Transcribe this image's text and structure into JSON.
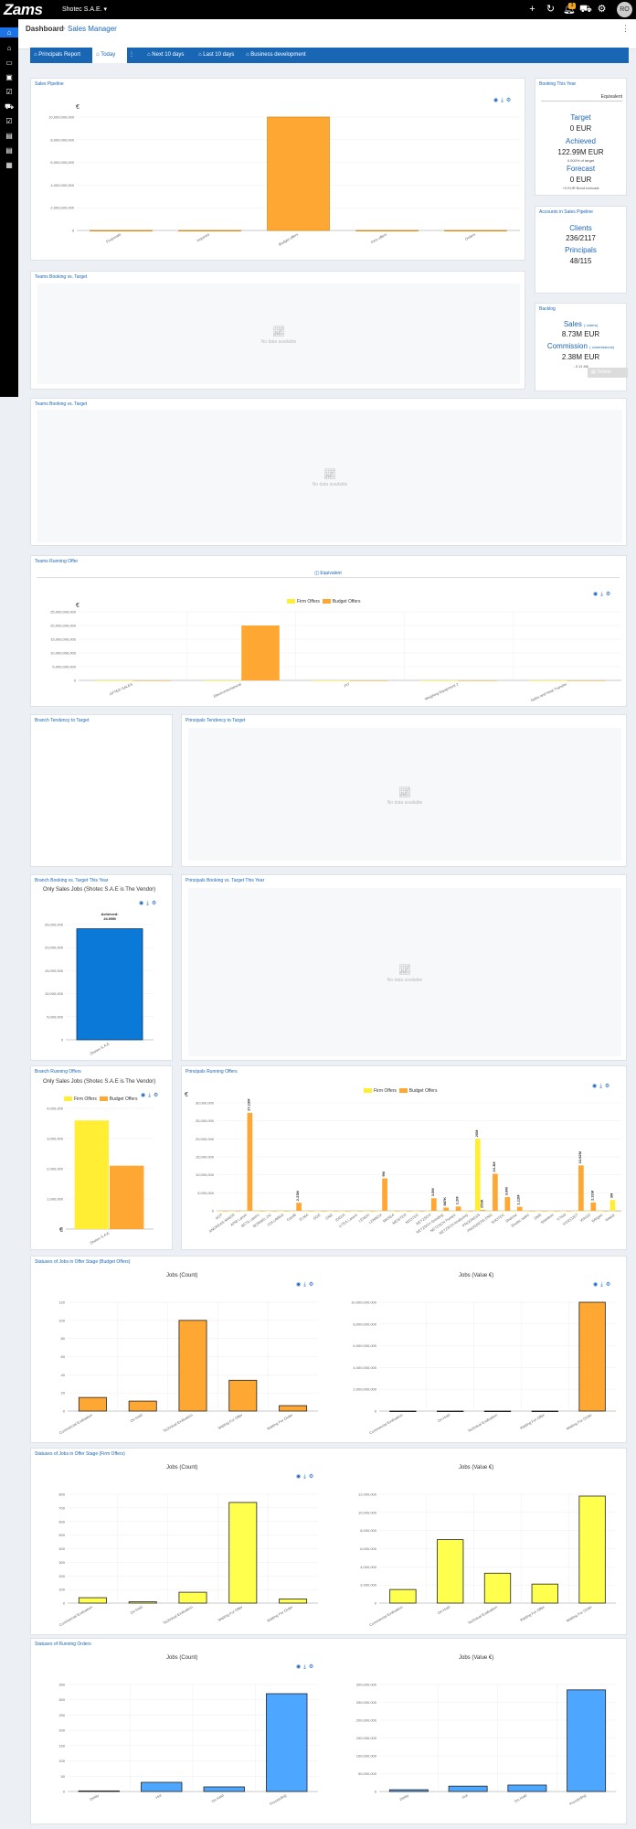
{
  "app": {
    "logo": "Zams",
    "company": "Shotec S.A.E.",
    "notification_count": "3",
    "avatar_initials": "RO"
  },
  "topbar_icons": [
    "plus-icon",
    "history-icon",
    "bell-icon",
    "cart-icon",
    "grid-icon",
    "settings-icon"
  ],
  "breadcrumb": {
    "home": "Dashboard",
    "separator": ">",
    "page": "Sales Manager"
  },
  "tabs": [
    {
      "label": "Principals Report",
      "icon": "dashboard-icon",
      "active": false
    },
    {
      "label": "Today",
      "icon": "dashboard-icon",
      "active": true
    },
    {
      "label": "Next 10 days",
      "icon": "dashboard-icon",
      "active": false
    },
    {
      "label": "Last 10 days",
      "icon": "dashboard-icon",
      "active": false
    },
    {
      "label": "Business development",
      "icon": "dashboard-icon",
      "active": false
    }
  ],
  "sales_pipeline": {
    "title": "Sales Pipeline",
    "currency": "€",
    "chart_data": {
      "type": "bar",
      "categories": [
        "Proposals",
        "Inquiries",
        "Budget offers",
        "Firm offers",
        "Orders"
      ],
      "values": [
        0,
        0,
        10000000000,
        0,
        0
      ],
      "ylim": [
        0,
        10000000000
      ],
      "yticks": [
        "0",
        "2,000,000,000",
        "4,000,000,000",
        "6,000,000,000",
        "8,000,000,000",
        "10,000,000,000"
      ]
    }
  },
  "booking_this_year": {
    "title": "Booking This Year",
    "select_value": "Equivalent",
    "target_label": "Target",
    "target_value": "0 EUR",
    "achieved_label": "Achieved",
    "achieved_value": "122.99M EUR",
    "achieved_sub": "0.000% of target",
    "forecast_label": "Forecast",
    "forecast_value": "0 EUR",
    "forecast_sub": "+0 EUR Bond forecast"
  },
  "accounts_pipeline": {
    "title": "Accounts in Sales Pipeline",
    "clients_label": "Clients",
    "clients_value": "236/2117",
    "principals_label": "Principals",
    "principals_value": "48/115"
  },
  "backlog": {
    "title": "Backlog",
    "sales_label": "Sales",
    "sales_link": "( orders)",
    "sales_value": "8.73M EUR",
    "commission_label": "Commission",
    "commission_link": "( commissions)",
    "commission_value": "2.38M EUR",
    "commission_sub": "- 0.11 Mil",
    "tickets_label": "Tickets"
  },
  "teams_booking_small": {
    "title": "Teams Booking vs. Target",
    "no_data": "No data available"
  },
  "teams_booking_large": {
    "title": "Teams Booking vs. Target",
    "no_data": "No data available"
  },
  "teams_running_offer": {
    "title": "Teams Running Offer",
    "equivalent_label": "Equivalent",
    "currency": "€",
    "legend": [
      "Firm Offers",
      "Budget Offers"
    ],
    "chart_data": {
      "type": "bar",
      "categories": [
        "AFTER SALES",
        "Electromechanical",
        "PIT",
        "Weighing Equipment 2",
        "Sales and Heat Transfer"
      ],
      "series": [
        {
          "name": "Firm Offers",
          "values": [
            0,
            0,
            0,
            0,
            0
          ]
        },
        {
          "name": "Budget Offers",
          "values": [
            0,
            20000000000,
            0,
            0,
            0
          ]
        }
      ],
      "ylim": [
        0,
        25000000000
      ],
      "yticks": [
        "0",
        "5,000,000,000",
        "10,000,000,000",
        "15,000,000,000",
        "20,000,000,000",
        "25,000,000,000"
      ]
    }
  },
  "branch_tendency": {
    "title": "Branch Tendency to Target"
  },
  "principals_tendency": {
    "title": "Principals Tendency to Target",
    "no_data": "No data available"
  },
  "branch_booking": {
    "title": "Branch Booking vs. Target This Year",
    "subtitle": "Only Sales Jobs (Shotec S.A.E is The Vendor)",
    "label_achieved": "Achieved:",
    "label_value": "24.09M",
    "chart_data": {
      "type": "bar",
      "categories": [
        "Shotec S.A.E"
      ],
      "values": [
        24090000
      ],
      "ylim": [
        0,
        25000000
      ],
      "yticks": [
        "0",
        "5,000,000",
        "10,000,000",
        "15,000,000",
        "20,000,000",
        "25,000,000"
      ]
    }
  },
  "principals_booking": {
    "title": "Principals Booking vs. Target This Year",
    "no_data": "No data available"
  },
  "branch_running": {
    "title": "Branch Running Offers",
    "subtitle": "Only Sales Jobs (Shotec S.A.E is The Vendor)",
    "legend": [
      "Firm Offers",
      "Budget Offers"
    ],
    "currency": "€",
    "chart_data": {
      "type": "bar",
      "categories": [
        "Shotec S.A.E"
      ],
      "series": [
        {
          "name": "Firm Offers",
          "values": [
            3600000
          ]
        },
        {
          "name": "Budget Offers",
          "values": [
            2100000
          ]
        }
      ],
      "ylim": [
        0,
        4000000
      ],
      "yticks": [
        "0",
        "1,000,000",
        "2,000,000",
        "3,000,000",
        "4,000,000"
      ]
    }
  },
  "principals_running": {
    "title": "Principals Running Offers",
    "legend": [
      "Firm Offers",
      "Budget Offers"
    ],
    "currency": "€",
    "chart_data": {
      "type": "bar",
      "categories": [
        "ACP",
        "ANDREAS MAIER",
        "APM Lamm",
        "BETA Lasers",
        "BORMEL DC",
        "COLUMBIA",
        "Carelli",
        "ELMA",
        "GGE",
        "GNE",
        "IDEEA",
        "ILTEA Lasers",
        "LENOX",
        "LENNOX",
        "MASSA",
        "MEISTER",
        "NEOTEC",
        "NETZSCH",
        "NETZSCH Grinding",
        "NETZSCH Pumps",
        "NETZSCH Analyzing",
        "PROGRESS",
        "PROGRESS ENG",
        "SHOTEC",
        "Sharma",
        "Shotec sales",
        "SMS",
        "Stainless",
        "TITAN",
        "VIDEOJET",
        "WAGO",
        "Wirtgen",
        "Weber"
      ],
      "series": [
        {
          "name": "Firm Offers",
          "values": [
            0,
            0,
            0,
            0,
            0,
            0,
            0,
            0,
            0,
            0,
            0,
            0,
            0,
            0,
            0,
            0,
            0,
            0,
            0,
            0,
            0,
            20000000,
            0,
            0,
            0,
            0,
            0,
            0,
            0,
            0,
            0,
            0,
            3000000
          ]
        },
        {
          "name": "Budget Offers",
          "values": [
            0,
            0,
            27230000,
            0,
            0,
            0,
            2230000,
            0,
            0,
            0,
            0,
            0,
            0,
            9000000,
            0,
            0,
            0,
            3500000,
            887000,
            1200000,
            0,
            253170,
            10300000,
            3800000,
            1120000,
            0,
            0,
            0,
            0,
            12620000,
            2310000,
            0,
            0
          ]
        }
      ],
      "ylim": [
        0,
        30000000
      ],
      "yticks": [
        "0",
        "5,000,000",
        "10,000,000",
        "15,000,000",
        "20,000,000",
        "25,000,000",
        "30,000,000"
      ]
    }
  },
  "statuses_budget": {
    "title": "Statuses of Jobs in Offer Stage (Budget Offers)",
    "count_title": "Jobs (Count)",
    "value_title": "Jobs (Value €)",
    "count_chart": {
      "type": "bar",
      "categories": [
        "Commercial Evaluation",
        "On Hold",
        "Technical Evaluation",
        "Waiting For Offer",
        "Waiting For Order"
      ],
      "values": [
        15,
        11,
        100,
        34,
        6
      ],
      "ylim": [
        0,
        120
      ],
      "yticks": [
        "0",
        "20",
        "40",
        "60",
        "80",
        "100",
        "120"
      ]
    },
    "value_chart": {
      "type": "bar",
      "categories": [
        "Commercial Evaluation",
        "On Hold",
        "Technical Evaluation",
        "Waiting For Offer",
        "Waiting For Order"
      ],
      "values": [
        0,
        0,
        0,
        0,
        10000000000
      ],
      "ylim": [
        0,
        10000000000
      ],
      "yticks": [
        "0",
        "2,000,000,000",
        "4,000,000,000",
        "6,000,000,000",
        "8,000,000,000",
        "10,000,000,000"
      ]
    }
  },
  "statuses_firm": {
    "title": "Statuses of Jobs in Offer Stage (Firm Offers)",
    "count_title": "Jobs (Count)",
    "value_title": "Jobs (Value €)",
    "count_chart": {
      "type": "bar",
      "categories": [
        "Commercial Evaluation",
        "On Hold",
        "Technical Evaluation",
        "Waiting For Offer",
        "Waiting For Order"
      ],
      "values": [
        40,
        10,
        80,
        740,
        30
      ],
      "ylim": [
        0,
        800
      ],
      "yticks": [
        "0",
        "100",
        "200",
        "300",
        "400",
        "500",
        "600",
        "700",
        "800"
      ]
    },
    "value_chart": {
      "type": "bar",
      "categories": [
        "Commercial Evaluation",
        "On Hold",
        "Technical Evaluation",
        "Waiting For Offer",
        "Waiting For Order"
      ],
      "values": [
        1500000,
        7000000,
        3300000,
        2100000,
        11800000
      ],
      "ylim": [
        0,
        12000000
      ],
      "yticks": [
        "0",
        "2,000,000",
        "4,000,000",
        "6,000,000",
        "8,000,000",
        "10,000,000",
        "12,000,000"
      ]
    }
  },
  "statuses_orders": {
    "title": "Statuses of Running Orders",
    "count_title": "Jobs (Count)",
    "value_title": "Jobs (Value €)",
    "count_chart": {
      "type": "bar",
      "categories": [
        "Delay",
        "Hot",
        "On Hold",
        "Proceeding"
      ],
      "values": [
        2,
        30,
        15,
        320
      ],
      "ylim": [
        0,
        350
      ],
      "yticks": [
        "0",
        "50",
        "100",
        "150",
        "200",
        "250",
        "300",
        "350"
      ]
    },
    "value_chart": {
      "type": "bar",
      "categories": [
        "Delay",
        "Hot",
        "On Hold",
        "Proceeding"
      ],
      "values": [
        5000000,
        15000000,
        18000000,
        285000000
      ],
      "ylim": [
        0,
        300000000
      ],
      "yticks": [
        "0",
        "50,000,000",
        "100,000,000",
        "150,000,000",
        "200,000,000",
        "250,000,000",
        "300,000,000"
      ]
    }
  },
  "colors": {
    "accent": "#1866b4",
    "orange": "#ffa733",
    "yellow": "#ffee33",
    "blue": "#0b79d8",
    "light_blue": "#4da6ff"
  }
}
